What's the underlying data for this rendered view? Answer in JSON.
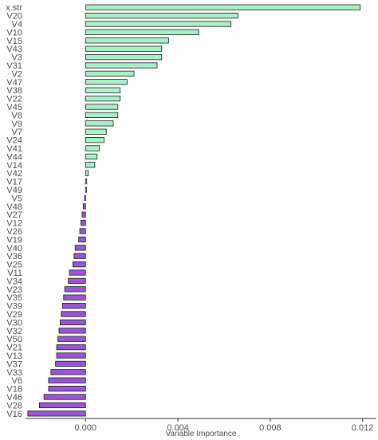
{
  "chart_data": {
    "type": "bar",
    "orientation": "horizontal",
    "xlabel": "Variable Importance",
    "ylabel": "",
    "xlim": [
      -0.0026,
      0.0126
    ],
    "xticks": [
      0.0,
      0.004,
      0.008,
      0.012
    ],
    "xtick_labels": [
      "0.000",
      "0.004",
      "0.008",
      "0.012"
    ],
    "grid": false,
    "legend": "none",
    "colors": {
      "positive": "#a8f0c6",
      "negative": "#9a55d8",
      "outline": "#1a1a1a",
      "axis": "#333333"
    },
    "categories": [
      "x.str",
      "V20",
      "V4",
      "V10",
      "V15",
      "V43",
      "V3",
      "V31",
      "V2",
      "V47",
      "V38",
      "V22",
      "V45",
      "V8",
      "V9",
      "V7",
      "V24",
      "V41",
      "V44",
      "V14",
      "V42",
      "V17",
      "V49",
      "V5",
      "V48",
      "V27",
      "V12",
      "V26",
      "V19",
      "V40",
      "V36",
      "V25",
      "V11",
      "V34",
      "V23",
      "V35",
      "V39",
      "V29",
      "V30",
      "V32",
      "V50",
      "V21",
      "V13",
      "V37",
      "V33",
      "V6",
      "V18",
      "V46",
      "V28",
      "V16"
    ],
    "values": [
      0.0119,
      0.0066,
      0.0063,
      0.0049,
      0.0036,
      0.0033,
      0.0033,
      0.0031,
      0.0021,
      0.0018,
      0.0015,
      0.0015,
      0.0014,
      0.0014,
      0.0012,
      0.0009,
      0.0008,
      0.0006,
      0.0005,
      0.0004,
      0.00012,
      5e-05,
      4e-05,
      -4e-05,
      -0.0001,
      -0.00015,
      -0.0002,
      -0.00025,
      -0.0003,
      -0.00045,
      -0.0005,
      -0.00055,
      -0.0007,
      -0.00075,
      -0.0009,
      -0.00095,
      -0.001,
      -0.00105,
      -0.0011,
      -0.00115,
      -0.0012,
      -0.00125,
      -0.00125,
      -0.0013,
      -0.0015,
      -0.0016,
      -0.0016,
      -0.0018,
      -0.002,
      -0.0025
    ]
  }
}
